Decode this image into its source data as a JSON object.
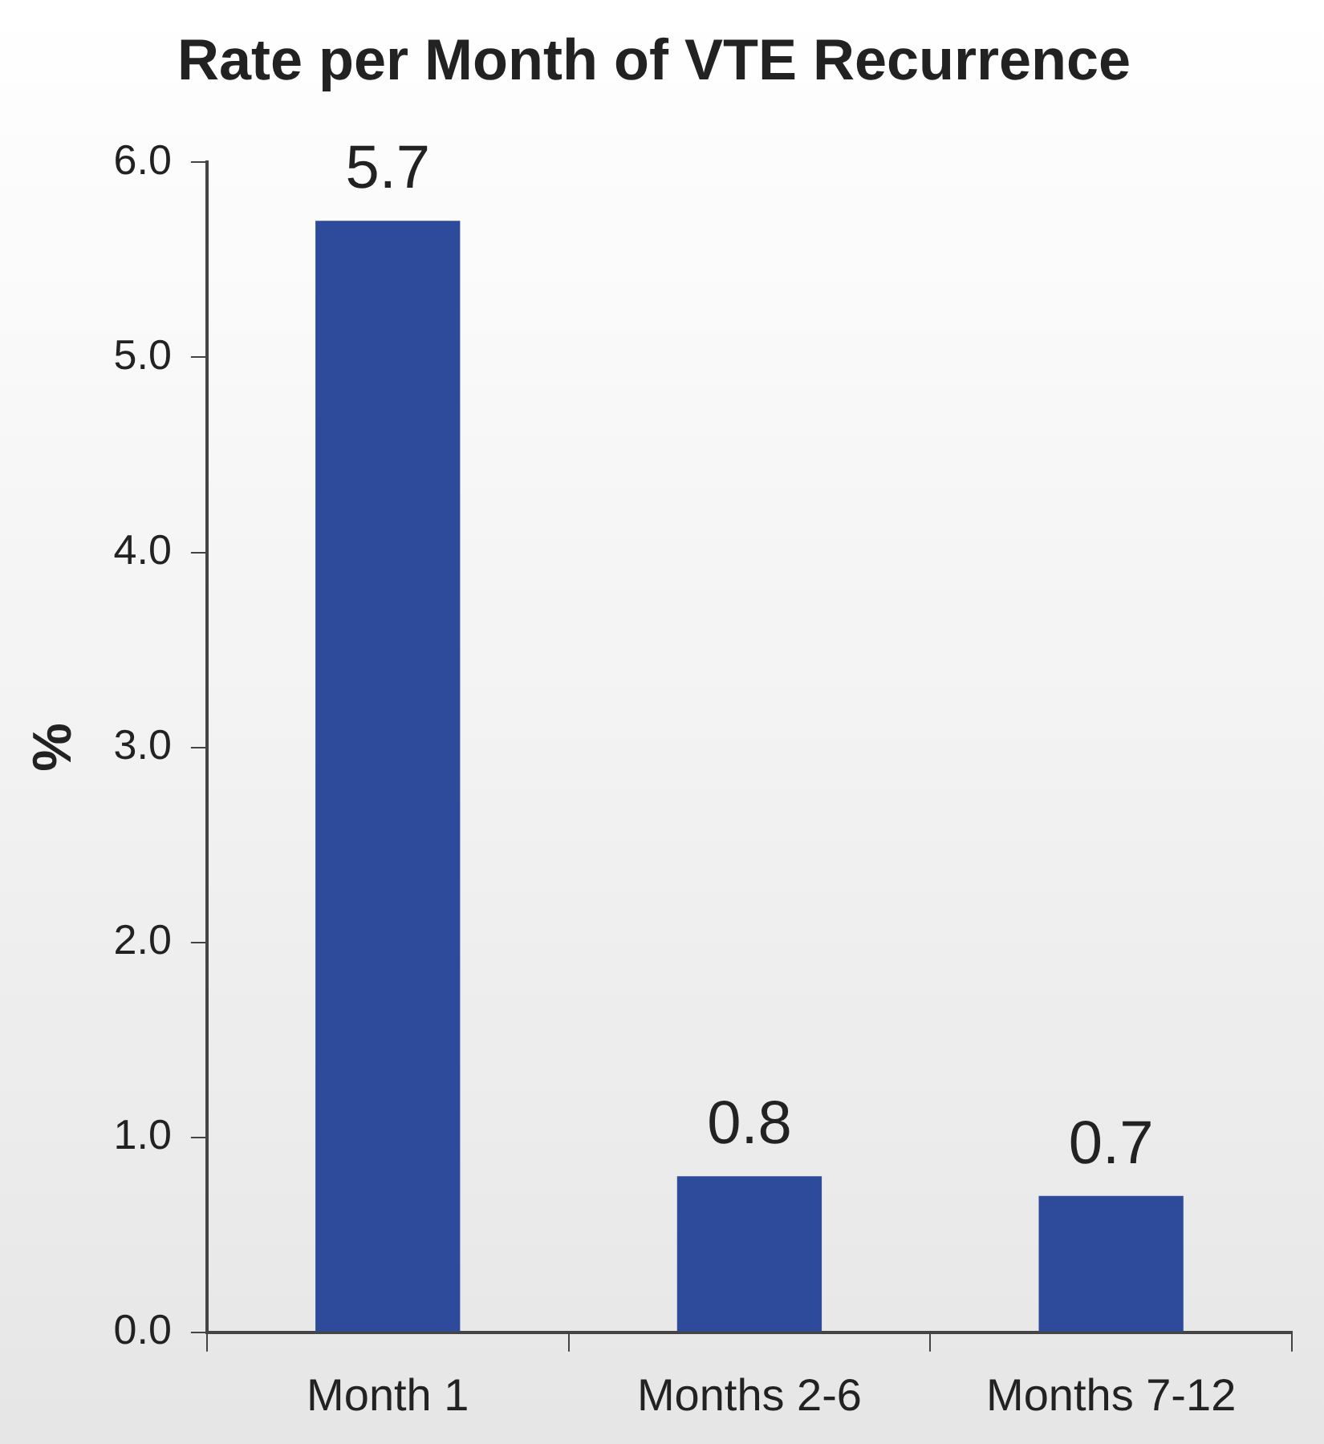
{
  "chart_data": {
    "type": "bar",
    "title": "Rate per Month of VTE Recurrence",
    "ylabel": "%",
    "categories": [
      "Month 1",
      "Months 2-6",
      "Months 7-12"
    ],
    "values": [
      5.7,
      0.8,
      0.7
    ],
    "color": "#2e4b9b",
    "ylim": [
      0,
      6
    ],
    "yticks": [
      {
        "value": 0,
        "label": "0.0"
      },
      {
        "value": 1,
        "label": "1.0"
      },
      {
        "value": 2,
        "label": "2.0"
      },
      {
        "value": 3,
        "label": "3.0"
      },
      {
        "value": 4,
        "label": "4.0"
      },
      {
        "value": 5,
        "label": "5.0"
      },
      {
        "value": 6,
        "label": "6.0"
      }
    ],
    "grid": false,
    "legend": false,
    "data_labels": true
  }
}
